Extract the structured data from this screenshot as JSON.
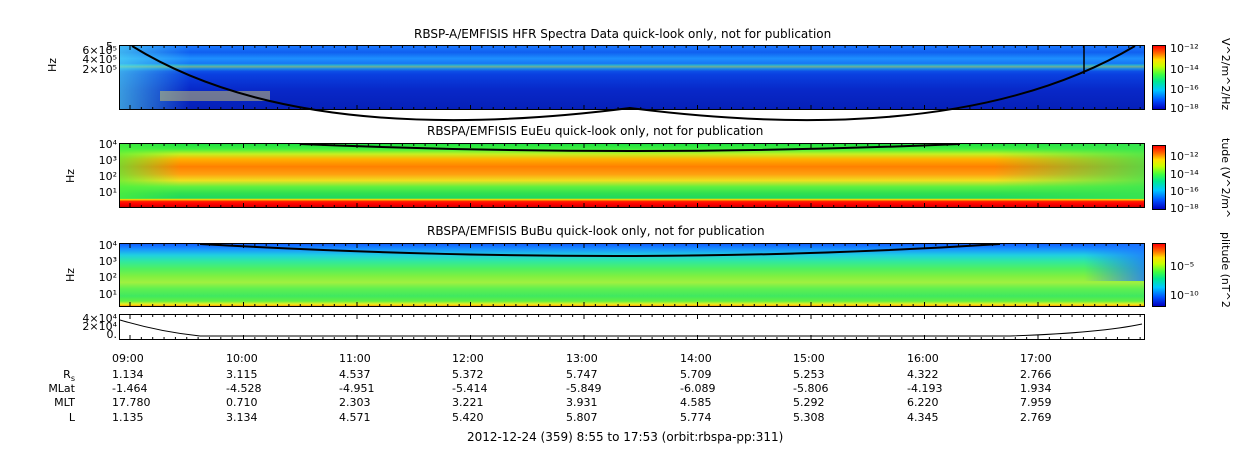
{
  "chart_data": [
    {
      "type": "heatmap",
      "title": "RBSP-A/EMFISIS  HFR Spectra Data quick-look only, not for publication",
      "ylabel": "Hz",
      "ytick_labels": [
        "6×10⁵",
        "4×10⁵",
        "2×10⁵",
        "5"
      ],
      "colorbar_label": "V^2/m^2/Hz",
      "colorbar_ticks": [
        "10⁻¹²",
        "10⁻¹⁴",
        "10⁻¹⁶",
        "10⁻¹⁸"
      ]
    },
    {
      "type": "heatmap",
      "title": "RBSPA/EMFISIS  EuEu quick-look only, not for publication",
      "ylabel": "Hz",
      "ytick_labels": [
        "10⁴",
        "10³",
        "10²",
        "10¹"
      ],
      "colorbar_label": "tude (V^2/m^",
      "colorbar_ticks": [
        "10⁻¹²",
        "10⁻¹⁴",
        "10⁻¹⁶",
        "10⁻¹⁸"
      ]
    },
    {
      "type": "heatmap",
      "title": "RBSPA/EMFISIS  BuBu quick-look only, not for publication",
      "ylabel": "Hz",
      "ytick_labels": [
        "10⁴",
        "10³",
        "10²",
        "10¹"
      ],
      "colorbar_label": "plitude (nT^2",
      "colorbar_ticks": [
        "10⁻⁵",
        "10⁻¹⁰"
      ]
    },
    {
      "type": "line",
      "ytick_labels": [
        "4×10⁴",
        "2×10⁴",
        "0."
      ]
    }
  ],
  "time_ticks": [
    "09:00",
    "10:00",
    "11:00",
    "12:00",
    "13:00",
    "14:00",
    "15:00",
    "16:00",
    "17:00"
  ],
  "ephemeris": [
    {
      "label": "R",
      "label_sub": "s",
      "values": [
        "1.134",
        "3.115",
        "4.537",
        "5.372",
        "5.747",
        "5.709",
        "5.253",
        "4.322",
        "2.766"
      ]
    },
    {
      "label": "MLat",
      "label_sub": "",
      "values": [
        "-1.464",
        "-4.528",
        "-4.951",
        "-5.414",
        "-5.849",
        "-6.089",
        "-5.806",
        "-4.193",
        "1.934"
      ]
    },
    {
      "label": "MLT",
      "label_sub": "",
      "values": [
        "17.780",
        "0.710",
        "2.303",
        "3.221",
        "3.931",
        "4.585",
        "5.292",
        "6.220",
        "7.959"
      ]
    },
    {
      "label": "L",
      "label_sub": "",
      "values": [
        "1.135",
        "3.134",
        "4.571",
        "5.420",
        "5.807",
        "5.774",
        "5.308",
        "4.345",
        "2.769"
      ]
    }
  ],
  "footer": "2012-12-24 (359) 8:55 to 17:53 (orbit:rbspa-pp:311)"
}
